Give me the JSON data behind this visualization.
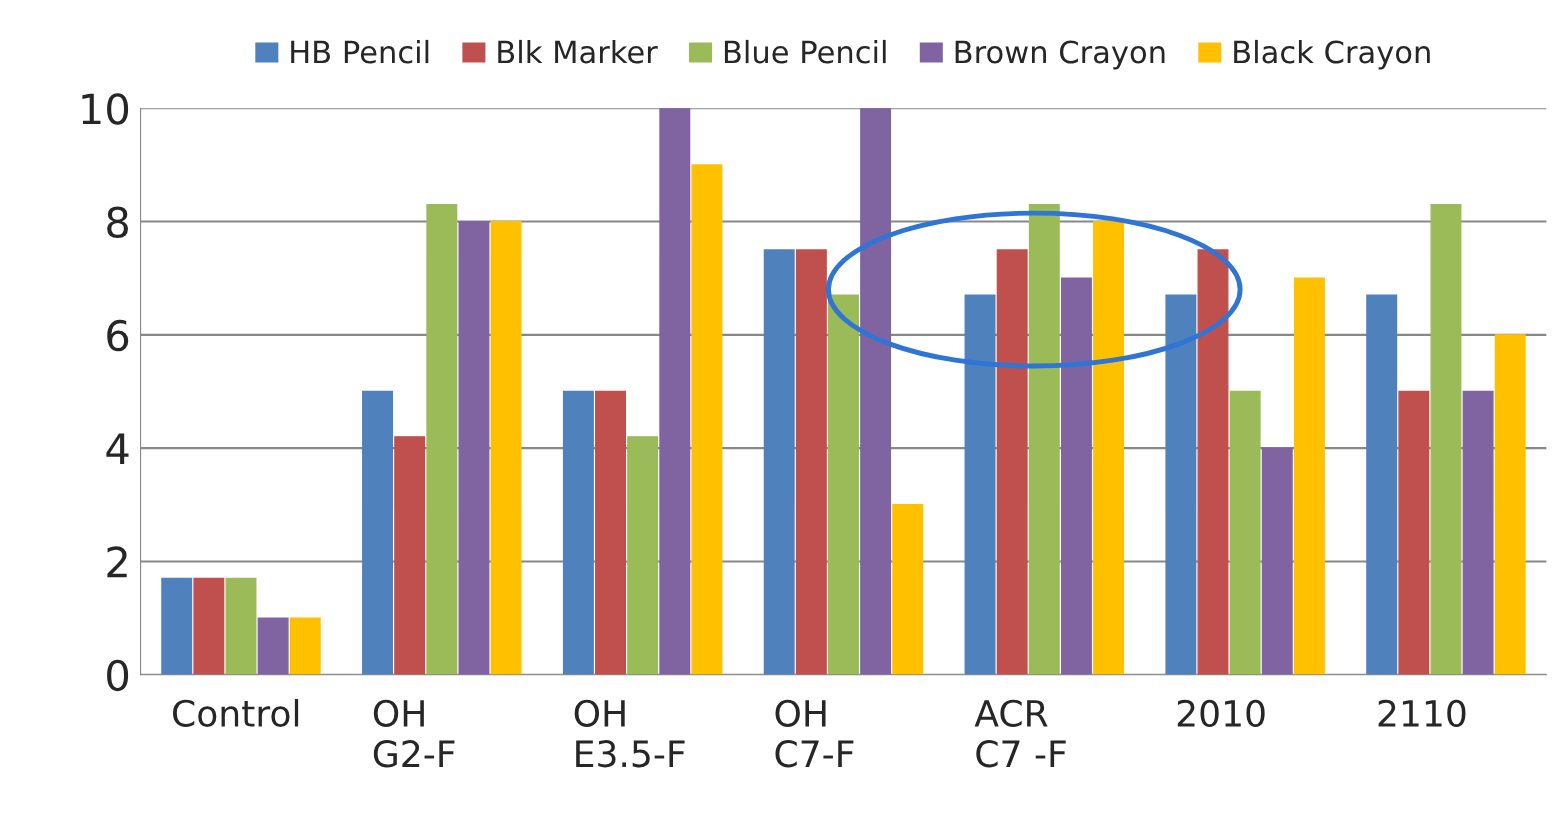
{
  "chart_data": {
    "type": "bar",
    "categories": [
      "Control",
      "OH\nG2-F",
      "OH\nE3.5-F",
      "OH\nC7-F",
      "ACR\nC7 -F",
      "2010",
      "2110"
    ],
    "series": [
      {
        "name": "HB Pencil",
        "color": "#4f81bd",
        "values": [
          1.7,
          5,
          5,
          7.5,
          6.7,
          6.7,
          6.7
        ]
      },
      {
        "name": "Blk Marker",
        "color": "#c0504d",
        "values": [
          1.7,
          4.2,
          5,
          7.5,
          7.5,
          7.5,
          5
        ]
      },
      {
        "name": "Blue Pencil",
        "color": "#9bbb59",
        "values": [
          1.7,
          8.3,
          4.2,
          6.7,
          8.3,
          5,
          8.3
        ]
      },
      {
        "name": "Brown Crayon",
        "color": "#8064a2",
        "values": [
          1,
          8,
          10,
          10,
          7,
          4,
          5
        ]
      },
      {
        "name": "Black Crayon",
        "color": "#ffc000",
        "values": [
          1,
          8,
          9,
          3,
          8,
          7,
          6
        ]
      }
    ],
    "ylim": [
      0,
      10
    ],
    "yticks": [
      0,
      2,
      4,
      6,
      8,
      10
    ],
    "grid": "y",
    "legend": "top"
  }
}
